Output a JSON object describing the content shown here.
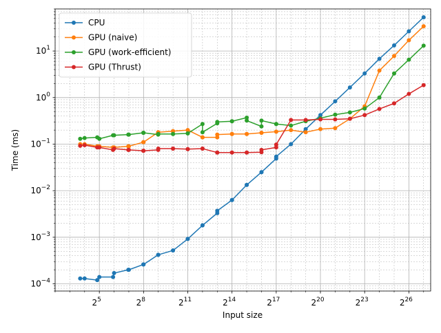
{
  "chart_data": {
    "type": "line",
    "title": "",
    "xlabel": "Input size",
    "ylabel": "Time (ms)",
    "x_scale": "log2",
    "y_scale": "log10",
    "xlim": [
      4,
      187000000
    ],
    "ylim": [
      7e-05,
      80
    ],
    "grid": "major and minor",
    "legend_position": "top-left",
    "x_ticks": [
      {
        "value": 32,
        "base": "2",
        "exp": "5"
      },
      {
        "value": 256,
        "base": "2",
        "exp": "8"
      },
      {
        "value": 2048,
        "base": "2",
        "exp": "11"
      },
      {
        "value": 16384,
        "base": "2",
        "exp": "14"
      },
      {
        "value": 131072,
        "base": "2",
        "exp": "17"
      },
      {
        "value": 1048576,
        "base": "2",
        "exp": "20"
      },
      {
        "value": 8388608,
        "base": "2",
        "exp": "23"
      },
      {
        "value": 67108864,
        "base": "2",
        "exp": "26"
      }
    ],
    "y_ticks": [
      {
        "value": 0.0001,
        "base": "10",
        "exp": "−4"
      },
      {
        "value": 0.001,
        "base": "10",
        "exp": "−3"
      },
      {
        "value": 0.01,
        "base": "10",
        "exp": "−2"
      },
      {
        "value": 0.1,
        "base": "10",
        "exp": "−1"
      },
      {
        "value": 1,
        "base": "10",
        "exp": "0"
      },
      {
        "value": 10,
        "base": "10",
        "exp": "1"
      }
    ],
    "x": [
      13,
      16,
      29,
      32,
      61,
      64,
      125,
      128,
      253,
      256,
      509,
      512,
      1021,
      1024,
      2045,
      2048,
      4093,
      4096,
      8189,
      8192,
      16381,
      16384,
      32765,
      32768,
      65533,
      65536,
      131069,
      131072,
      262144,
      524288,
      1048576,
      2097152,
      4194304,
      8388608,
      16777216,
      33554432,
      67108864,
      134217728
    ],
    "series": [
      {
        "name": "CPU",
        "color": "#1f77b4",
        "values": [
          0.00013,
          0.00013,
          0.00012,
          0.00014,
          0.00014,
          0.00017,
          0.0002,
          0.0002,
          0.00026,
          0.00026,
          0.00042,
          0.00042,
          0.00052,
          0.00052,
          0.00092,
          0.00092,
          0.0018,
          0.0018,
          0.0033,
          0.0037,
          0.0063,
          0.0063,
          0.0133,
          0.0133,
          0.025,
          0.025,
          0.049,
          0.054,
          0.1,
          0.21,
          0.42,
          0.83,
          1.65,
          3.3,
          6.8,
          13.2,
          26.5,
          53
        ]
      },
      {
        "name": "GPU (naive)",
        "color": "#ff7f0e",
        "values": [
          0.1,
          0.1,
          0.09,
          0.09,
          0.085,
          0.085,
          0.09,
          0.09,
          0.11,
          0.11,
          0.18,
          0.18,
          0.19,
          0.19,
          0.2,
          0.2,
          0.14,
          0.14,
          0.14,
          0.16,
          0.165,
          0.165,
          0.165,
          0.165,
          0.175,
          0.175,
          0.185,
          0.185,
          0.2,
          0.18,
          0.21,
          0.22,
          0.35,
          0.65,
          3.8,
          7.8,
          17,
          34
        ]
      },
      {
        "name": "GPU (work-efficient)",
        "color": "#2ca02c",
        "values": [
          0.13,
          0.135,
          0.14,
          0.13,
          0.155,
          0.155,
          0.16,
          0.16,
          0.175,
          0.175,
          0.16,
          0.165,
          0.165,
          0.165,
          0.17,
          0.17,
          0.27,
          0.18,
          0.28,
          0.3,
          0.31,
          0.31,
          0.37,
          0.32,
          0.24,
          0.32,
          0.27,
          0.27,
          0.25,
          0.31,
          0.36,
          0.43,
          0.48,
          0.58,
          1.0,
          3.3,
          6.5,
          13
        ]
      },
      {
        "name": "GPU (Thrust)",
        "color": "#d62728",
        "values": [
          0.092,
          0.095,
          0.085,
          0.085,
          0.075,
          0.08,
          0.075,
          0.075,
          0.072,
          0.072,
          0.075,
          0.08,
          0.08,
          0.08,
          0.078,
          0.078,
          0.08,
          0.08,
          0.066,
          0.066,
          0.066,
          0.066,
          0.066,
          0.066,
          0.067,
          0.075,
          0.085,
          0.098,
          0.33,
          0.33,
          0.34,
          0.34,
          0.35,
          0.42,
          0.57,
          0.75,
          1.2,
          1.85
        ]
      }
    ]
  }
}
